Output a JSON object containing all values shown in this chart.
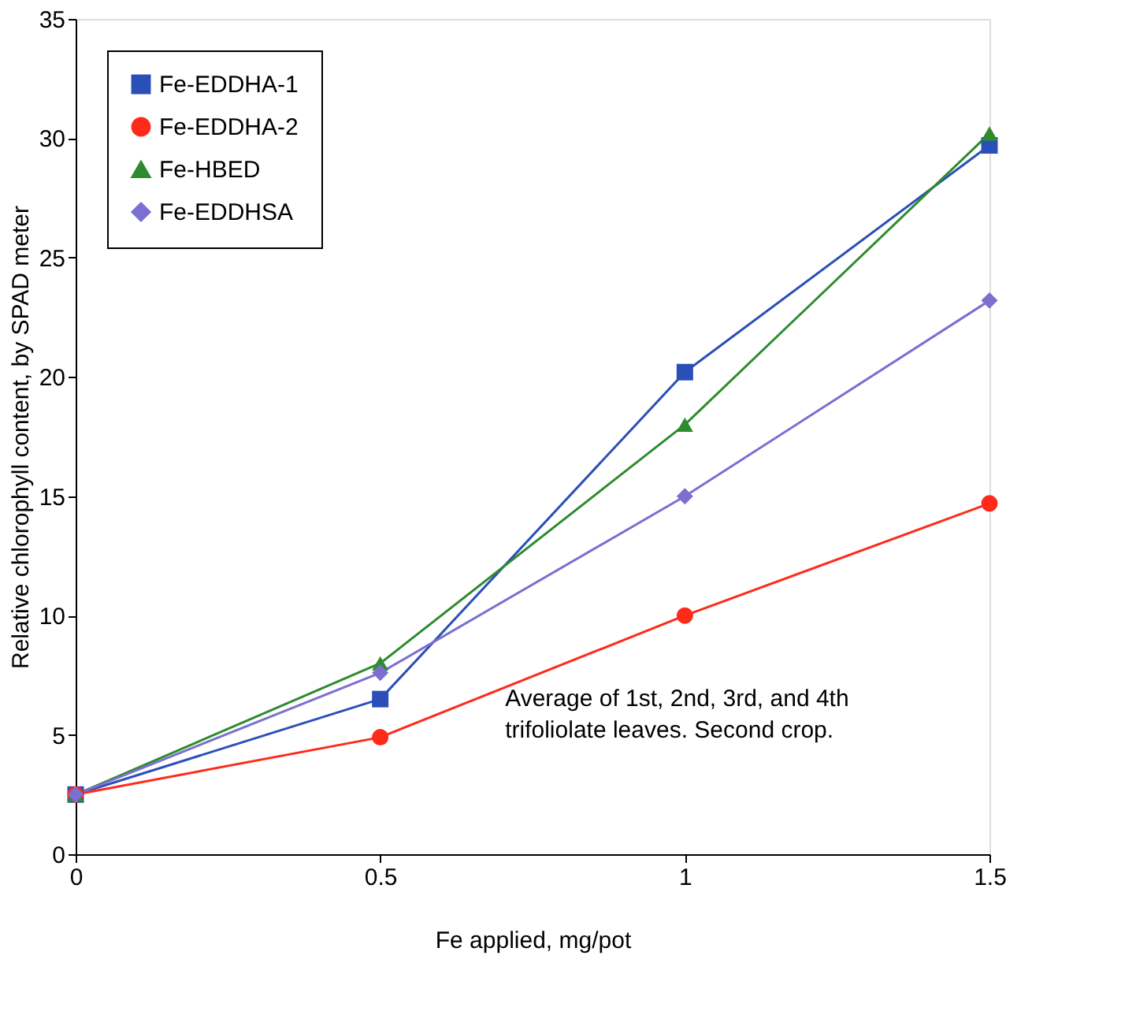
{
  "chart_data": {
    "type": "line",
    "xlabel": "Fe applied, mg/pot",
    "ylabel": "Relative chlorophyll content, by SPAD meter",
    "x": [
      0,
      0.5,
      1,
      1.5
    ],
    "series": [
      {
        "name": "Fe-EDDHA-1",
        "color": "#2b4fb8",
        "marker": "square",
        "values": [
          2.5,
          6.5,
          20.2,
          29.7
        ]
      },
      {
        "name": "Fe-EDDHA-2",
        "color": "#ff2a1a",
        "marker": "circle",
        "values": [
          2.5,
          4.9,
          10.0,
          14.7
        ]
      },
      {
        "name": "Fe-HBED",
        "color": "#2e8b2e",
        "marker": "triangle",
        "values": [
          2.5,
          8.0,
          18.0,
          30.2
        ]
      },
      {
        "name": "Fe-EDDHSA",
        "color": "#7b6fd0",
        "marker": "diamond",
        "values": [
          2.5,
          7.6,
          15.0,
          23.2
        ]
      }
    ],
    "xlim": [
      0,
      1.5
    ],
    "xticks": [
      0,
      0.5,
      1,
      1.5
    ],
    "ylim": [
      0,
      35
    ],
    "yticks": [
      0,
      5,
      10,
      15,
      20,
      25,
      30,
      35
    ],
    "grid": false,
    "legend": "top left",
    "annotations": [
      "Average of 1st, 2nd, 3rd, and 4th\ntrifoliolate leaves.  Second crop."
    ]
  }
}
